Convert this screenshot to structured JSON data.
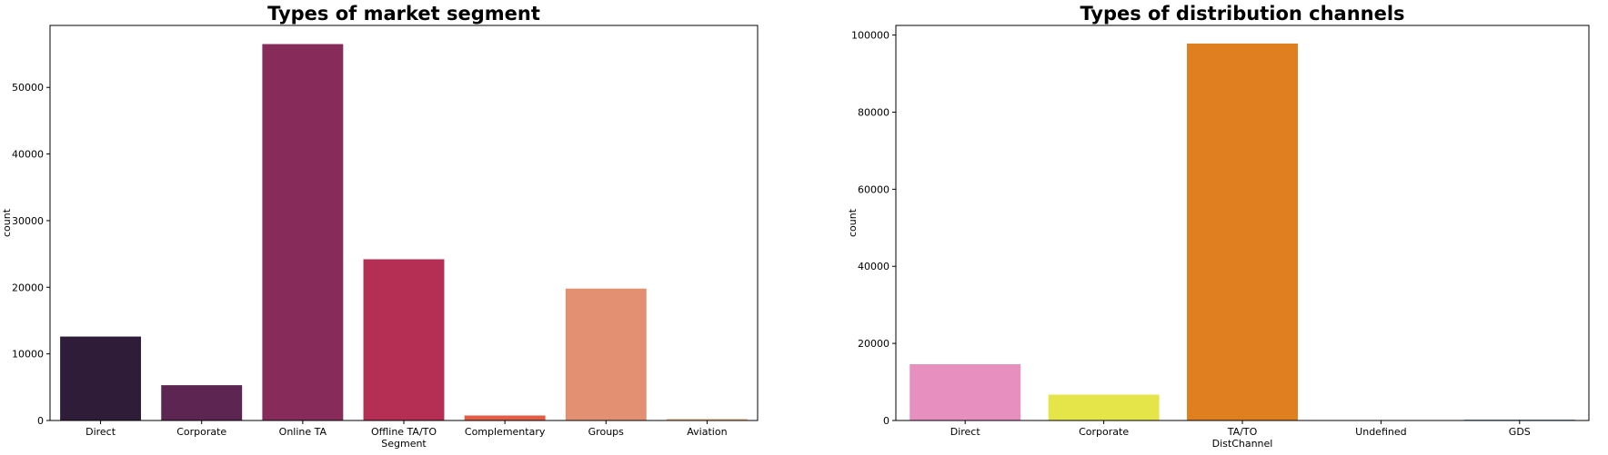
{
  "chart_data": [
    {
      "type": "bar",
      "title": "Types of market segment",
      "xlabel": "Segment",
      "ylabel": "count",
      "categories": [
        "Direct",
        "Corporate",
        "Online TA",
        "Offline TA/TO",
        "Complementary",
        "Groups",
        "Aviation"
      ],
      "values": [
        12600,
        5300,
        56500,
        24200,
        750,
        19800,
        240
      ],
      "colors": [
        "#2f1c38",
        "#5c2552",
        "#872b5b",
        "#b52f55",
        "#e35c45",
        "#e39072",
        "#f3b88e"
      ],
      "yticks": [
        0,
        10000,
        20000,
        30000,
        40000,
        50000
      ],
      "ylim": [
        0,
        59300
      ],
      "grid": false,
      "legend": "none"
    },
    {
      "type": "bar",
      "title": "Types of distribution channels",
      "xlabel": "DistChannel",
      "ylabel": "count",
      "categories": [
        "Direct",
        "Corporate",
        "TA/TO",
        "Undefined",
        "GDS"
      ],
      "values": [
        14600,
        6700,
        97800,
        5,
        190
      ],
      "colors": [
        "#e78fbf",
        "#e5e54a",
        "#e07f20",
        "#4a4a4a",
        "#2472a8"
      ],
      "yticks": [
        0,
        20000,
        40000,
        60000,
        80000,
        100000
      ],
      "ylim": [
        0,
        102500
      ],
      "grid": false,
      "legend": "none"
    }
  ]
}
